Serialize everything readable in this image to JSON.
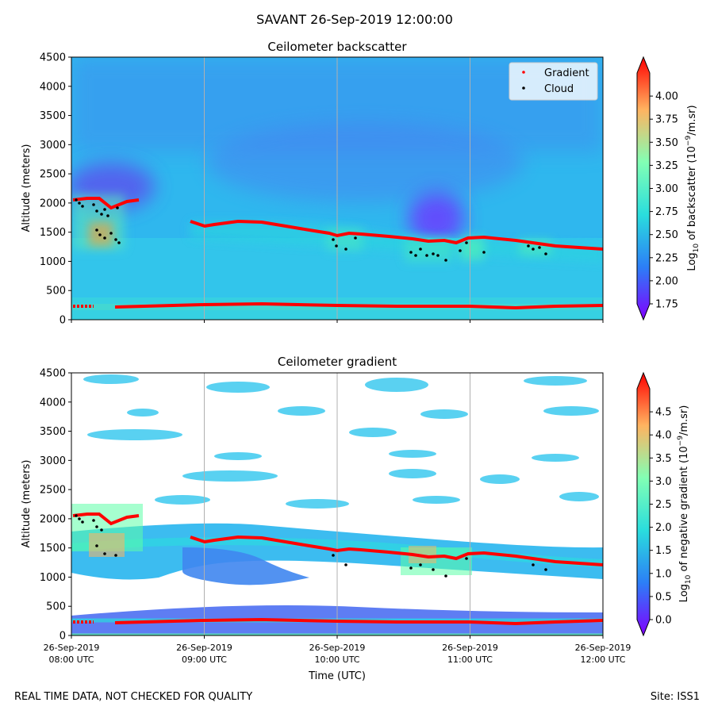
{
  "suptitle": "SAVANT 26-Sep-2019 12:00:00",
  "footer": {
    "left": "REAL TIME DATA, NOT CHECKED FOR QUALITY",
    "right": "Site: ISS1"
  },
  "x_axis": {
    "label": "Time (UTC)",
    "ticks": [
      {
        "date": "26-Sep-2019",
        "time": "08:00 UTC"
      },
      {
        "date": "26-Sep-2019",
        "time": "09:00 UTC"
      },
      {
        "date": "26-Sep-2019",
        "time": "10:00 UTC"
      },
      {
        "date": "26-Sep-2019",
        "time": "11:00 UTC"
      },
      {
        "date": "26-Sep-2019",
        "time": "12:00 UTC"
      }
    ]
  },
  "chart_data": [
    {
      "type": "heatmap",
      "title": "Ceilometer backscatter",
      "xlabel": "Time (UTC)",
      "ylabel": "Altitude (meters)",
      "xlim": [
        "2019-09-26 08:00",
        "2019-09-26 12:00"
      ],
      "ylim": [
        0,
        4500
      ],
      "yticks": [
        "0",
        "500",
        "1000",
        "1500",
        "2000",
        "2500",
        "3000",
        "3500",
        "4000",
        "4500"
      ],
      "grid": "vertical lines at hourly ticks",
      "legend": {
        "placement": "top-right",
        "entries": [
          {
            "name": "Gradient",
            "color": "#ff0000"
          },
          {
            "name": "Cloud",
            "color": "#000000"
          }
        ]
      },
      "colorbar": {
        "label_pre": "Log",
        "label_sub": "10",
        "label_mid": " of backscatter (10",
        "label_sup": "−9",
        "label_post": "/m.sr)",
        "min": 1.75,
        "max": 4.25,
        "ticks": [
          "1.75",
          "2.00",
          "2.25",
          "2.50",
          "2.75",
          "3.00",
          "3.25",
          "3.50",
          "3.75",
          "4.00"
        ],
        "tick_values": [
          1.75,
          2.0,
          2.25,
          2.5,
          2.75,
          3.0,
          3.25,
          3.5,
          3.75,
          4.0
        ],
        "colormap": "rainbow"
      },
      "gradient_series": [
        {
          "time": "2019-09-26 08:00",
          "altitude": 240
        },
        {
          "time": "2019-09-26 09:00",
          "altitude": 260
        },
        {
          "time": "2019-09-26 10:00",
          "altitude": 240
        },
        {
          "time": "2019-09-26 11:00",
          "altitude": 230
        },
        {
          "time": "2019-09-26 12:00",
          "altitude": 250
        }
      ],
      "cloud_series": [
        {
          "time": "2019-09-26 08:05",
          "altitude": 2000
        },
        {
          "time": "2019-09-26 08:15",
          "altitude": 1900
        },
        {
          "time": "2019-09-26 08:20",
          "altitude": 1500
        },
        {
          "time": "2019-09-26 10:00",
          "altitude": 1350
        },
        {
          "time": "2019-09-26 10:40",
          "altitude": 1100
        },
        {
          "time": "2019-09-26 11:25",
          "altitude": 1200
        }
      ]
    },
    {
      "type": "heatmap",
      "title": "Ceilometer gradient",
      "xlabel": "Time (UTC)",
      "ylabel": "Altitude (meters)",
      "xlim": [
        "2019-09-26 08:00",
        "2019-09-26 12:00"
      ],
      "ylim": [
        0,
        4500
      ],
      "yticks": [
        "0",
        "500",
        "1000",
        "1500",
        "2000",
        "2500",
        "3000",
        "3500",
        "4000",
        "4500"
      ],
      "grid": "vertical lines at hourly ticks",
      "colorbar": {
        "label_pre": "Log",
        "label_sub": "10",
        "label_mid": " of negative gradient (10",
        "label_sup": "−9",
        "label_post": "/m.sr)",
        "min": 0.0,
        "max": 5.0,
        "ticks": [
          "0.0",
          "0.5",
          "1.0",
          "1.5",
          "2.0",
          "2.5",
          "3.0",
          "3.5",
          "4.0",
          "4.5"
        ],
        "tick_values": [
          0.0,
          0.5,
          1.0,
          1.5,
          2.0,
          2.5,
          3.0,
          3.5,
          4.0,
          4.5
        ],
        "colormap": "rainbow"
      }
    }
  ]
}
